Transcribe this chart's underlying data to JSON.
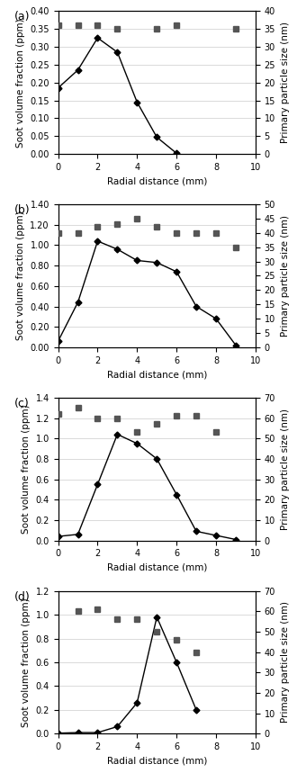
{
  "panels": [
    {
      "label": "(a)",
      "svf_x": [
        0,
        1,
        2,
        3,
        4,
        5,
        6
      ],
      "svf_y": [
        0.185,
        0.235,
        0.325,
        0.285,
        0.145,
        0.047,
        0.002
      ],
      "pps_x": [
        0,
        1,
        2,
        3,
        5,
        6,
        9
      ],
      "pps_y": [
        36,
        36,
        36,
        35,
        35,
        36,
        35
      ],
      "svf_ylim": [
        0,
        0.4
      ],
      "svf_yticks": [
        0.0,
        0.05,
        0.1,
        0.15,
        0.2,
        0.25,
        0.3,
        0.35,
        0.4
      ],
      "svf_yticklabels": [
        "0.00",
        "0.05",
        "0.10",
        "0.15",
        "0.20",
        "0.25",
        "0.30",
        "0.35",
        "0.40"
      ],
      "pps_ylim": [
        0,
        40
      ],
      "pps_yticks": [
        0,
        5,
        10,
        15,
        20,
        25,
        30,
        35,
        40
      ],
      "pps_yticklabels": [
        "0",
        "5",
        "10",
        "15",
        "20",
        "25",
        "30",
        "35",
        "40"
      ]
    },
    {
      "label": "(b)",
      "svf_x": [
        0,
        1,
        2,
        3,
        4,
        5,
        6,
        7,
        8,
        9
      ],
      "svf_y": [
        0.06,
        0.44,
        1.04,
        0.96,
        0.85,
        0.83,
        0.74,
        0.4,
        0.28,
        0.02
      ],
      "pps_x": [
        0,
        1,
        2,
        3,
        4,
        5,
        6,
        7,
        8,
        9
      ],
      "pps_y": [
        40,
        40,
        42,
        43,
        45,
        42,
        40,
        40,
        40,
        35
      ],
      "svf_ylim": [
        0,
        1.4
      ],
      "svf_yticks": [
        0.0,
        0.2,
        0.4,
        0.6,
        0.8,
        1.0,
        1.2,
        1.4
      ],
      "svf_yticklabels": [
        "0.00",
        "0.20",
        "0.40",
        "0.60",
        "0.80",
        "1.00",
        "1.20",
        "1.40"
      ],
      "pps_ylim": [
        0,
        50
      ],
      "pps_yticks": [
        0,
        5,
        10,
        15,
        20,
        25,
        30,
        35,
        40,
        45,
        50
      ],
      "pps_yticklabels": [
        "0",
        "5",
        "10",
        "15",
        "20",
        "25",
        "30",
        "35",
        "40",
        "45",
        "50"
      ]
    },
    {
      "label": "(c)",
      "svf_x": [
        0,
        1,
        2,
        3,
        4,
        5,
        6,
        7,
        8,
        9
      ],
      "svf_y": [
        0.04,
        0.06,
        0.55,
        1.04,
        0.95,
        0.8,
        0.45,
        0.09,
        0.05,
        0.01
      ],
      "pps_x": [
        0,
        1,
        2,
        3,
        4,
        5,
        6,
        7,
        8
      ],
      "pps_y": [
        62,
        65,
        60,
        60,
        53,
        57,
        61,
        61,
        53
      ],
      "svf_ylim": [
        0,
        1.4
      ],
      "svf_yticks": [
        0.0,
        0.2,
        0.4,
        0.6,
        0.8,
        1.0,
        1.2,
        1.4
      ],
      "svf_yticklabels": [
        "0.0",
        "0.2",
        "0.4",
        "0.6",
        "0.8",
        "1.0",
        "1.2",
        "1.4"
      ],
      "pps_ylim": [
        0,
        70
      ],
      "pps_yticks": [
        0,
        10,
        20,
        30,
        40,
        50,
        60,
        70
      ],
      "pps_yticklabels": [
        "0",
        "10",
        "20",
        "30",
        "40",
        "50",
        "60",
        "70"
      ]
    },
    {
      "label": "(d)",
      "svf_x": [
        0,
        1,
        2,
        3,
        4,
        5,
        6,
        7
      ],
      "svf_y": [
        0.005,
        0.01,
        0.01,
        0.06,
        0.26,
        0.98,
        0.6,
        0.2
      ],
      "pps_x": [
        1,
        2,
        3,
        4,
        5,
        6,
        7
      ],
      "pps_y": [
        60,
        61,
        56,
        56,
        50,
        46,
        40
      ],
      "svf_ylim": [
        0,
        1.2
      ],
      "svf_yticks": [
        0.0,
        0.2,
        0.4,
        0.6,
        0.8,
        1.0,
        1.2
      ],
      "svf_yticklabels": [
        "0.0",
        "0.2",
        "0.4",
        "0.6",
        "0.8",
        "1.0",
        "1.2"
      ],
      "pps_ylim": [
        0,
        70
      ],
      "pps_yticks": [
        0,
        10,
        20,
        30,
        40,
        50,
        60,
        70
      ],
      "pps_yticklabels": [
        "0",
        "10",
        "20",
        "30",
        "40",
        "50",
        "60",
        "70"
      ]
    }
  ],
  "xlim": [
    0,
    10
  ],
  "xticks": [
    0,
    2,
    4,
    6,
    8,
    10
  ],
  "xlabel": "Radial distance (mm)",
  "ylabel_left": "Soot volume fraction (ppm)",
  "ylabel_right": "Primary particle size (nm)",
  "line_color": "#000000",
  "marker_diamond": "D",
  "marker_square": "s",
  "marker_size_diamond": 3.5,
  "marker_size_square": 4.5,
  "background_color": "#ffffff",
  "grid_color": "#cccccc",
  "tick_fontsize": 7,
  "axis_label_fontsize": 7.5,
  "panel_label_fontsize": 9
}
